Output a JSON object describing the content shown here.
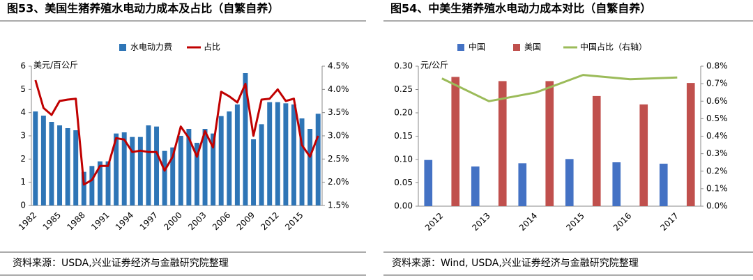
{
  "chart_data": [
    {
      "type": "bar",
      "title": "图53、美国生猪养殖水电动力成本及占比（自繁自养）",
      "y_unit": "美元/百公斤",
      "source": "资料来源：USDA,兴业证券经济与金融研究院整理",
      "categories": [
        "1982",
        null,
        null,
        "1985",
        null,
        null,
        "1988",
        null,
        null,
        "1991",
        null,
        null,
        "1994",
        null,
        null,
        "1997",
        null,
        null,
        "2000",
        null,
        null,
        "2003",
        null,
        null,
        "2006",
        null,
        null,
        "2009",
        null,
        null,
        "2012",
        null,
        null,
        "2015",
        null,
        null
      ],
      "series": [
        {
          "name": "水电动力费",
          "color": "#2e75b6",
          "type": "bar",
          "values": [
            4.05,
            3.87,
            3.6,
            3.45,
            3.33,
            3.24,
            1.45,
            1.7,
            1.9,
            1.9,
            3.1,
            3.15,
            2.95,
            2.95,
            3.45,
            3.4,
            2.35,
            2.5,
            3.0,
            3.3,
            2.7,
            3.3,
            3.1,
            3.85,
            4.05,
            4.35,
            5.7,
            2.85,
            3.5,
            4.45,
            4.45,
            4.4,
            4.35,
            3.75,
            3.3,
            3.95
          ]
        },
        {
          "name": "占比",
          "color": "#c00000",
          "type": "line",
          "axis": "y2",
          "values": [
            4.2,
            3.6,
            3.45,
            3.75,
            3.78,
            3.8,
            1.95,
            2.05,
            2.35,
            2.35,
            2.95,
            2.92,
            2.65,
            2.68,
            2.65,
            2.65,
            2.25,
            2.55,
            3.2,
            2.95,
            2.55,
            3.1,
            2.75,
            3.95,
            3.85,
            3.72,
            4.12,
            3.0,
            3.78,
            3.8,
            4.0,
            3.75,
            3.8,
            2.8,
            2.55,
            3.0
          ]
        }
      ],
      "ylim": [
        0,
        6
      ],
      "yticks": [
        0,
        1,
        2,
        3,
        4,
        5,
        6
      ],
      "y2lim": [
        1.5,
        4.5
      ],
      "y2ticks": [
        {
          "value": 1.5,
          "label": "1.5%"
        },
        {
          "value": 2.0,
          "label": "2.0%"
        },
        {
          "value": 2.5,
          "label": "2.5%"
        },
        {
          "value": 3.0,
          "label": "3.0%"
        },
        {
          "value": 3.5,
          "label": "3.5%"
        },
        {
          "value": 4.0,
          "label": "4.0%"
        },
        {
          "value": 4.5,
          "label": "4.5%"
        }
      ],
      "grid": false
    },
    {
      "type": "bar",
      "title": "图54、中美生猪养殖水电动力成本对比（自繁自养）",
      "y_unit": "元/公斤",
      "source": "资料来源：Wind, USDA,兴业证券经济与金融研究院整理",
      "categories": [
        "2012",
        "2013",
        "2014",
        "2015",
        "2016",
        "2017"
      ],
      "series": [
        {
          "name": "中国",
          "color": "#4472c4",
          "type": "bar",
          "values": [
            0.099,
            0.085,
            0.092,
            0.101,
            0.094,
            0.091
          ]
        },
        {
          "name": "美国",
          "color": "#c0504d",
          "type": "bar",
          "values": [
            0.277,
            0.268,
            0.268,
            0.236,
            0.218,
            0.264
          ]
        },
        {
          "name": "中国占比（右轴）",
          "color": "#9bbb59",
          "type": "line",
          "axis": "y2",
          "values": [
            0.73,
            0.6,
            0.65,
            0.75,
            0.725,
            0.735
          ]
        }
      ],
      "ylim": [
        0,
        0.3
      ],
      "yticks": [
        {
          "value": 0,
          "label": "0.00"
        },
        {
          "value": 0.05,
          "label": "0.05"
        },
        {
          "value": 0.1,
          "label": "0.10"
        },
        {
          "value": 0.15,
          "label": "0.15"
        },
        {
          "value": 0.2,
          "label": "0.20"
        },
        {
          "value": 0.25,
          "label": "0.25"
        },
        {
          "value": 0.3,
          "label": "0.30"
        }
      ],
      "y2lim": [
        0,
        0.8
      ],
      "y2ticks": [
        {
          "value": 0,
          "label": "0.0%"
        },
        {
          "value": 0.1,
          "label": "0.1%"
        },
        {
          "value": 0.2,
          "label": "0.2%"
        },
        {
          "value": 0.3,
          "label": "0.3%"
        },
        {
          "value": 0.4,
          "label": "0.4%"
        },
        {
          "value": 0.5,
          "label": "0.5%"
        },
        {
          "value": 0.6,
          "label": "0.6%"
        },
        {
          "value": 0.7,
          "label": "0.7%"
        },
        {
          "value": 0.8,
          "label": "0.8%"
        }
      ],
      "grid": false
    }
  ]
}
